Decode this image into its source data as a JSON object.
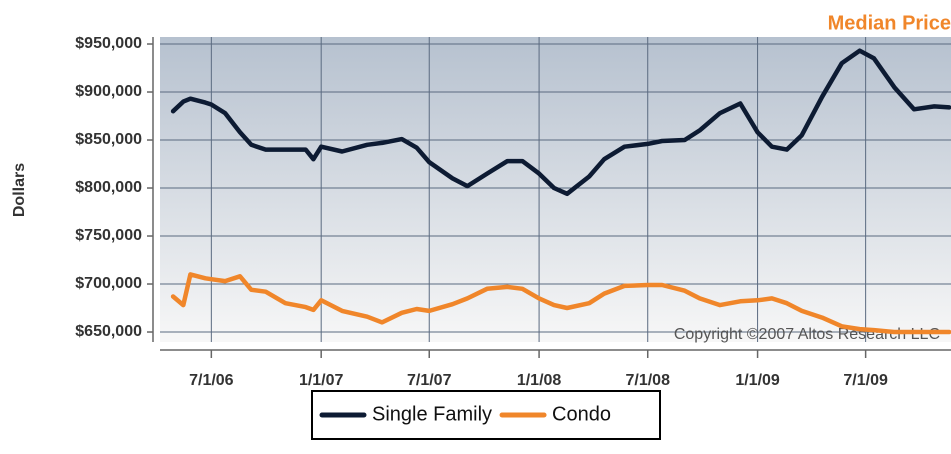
{
  "chart_data": {
    "type": "line",
    "title": "Median Price",
    "ylabel": "Dollars",
    "annotation": "Copyright ©2007 Altos Research LLC",
    "x": [
      "2006-04-28",
      "2006-05-15",
      "2006-05-27",
      "2006-06-21",
      "2006-07-01",
      "2006-07-24",
      "2006-08-18",
      "2006-09-06",
      "2006-09-30",
      "2006-11-02",
      "2006-12-06",
      "2006-12-19",
      "2007-01-01",
      "2007-02-05",
      "2007-03-19",
      "2007-04-13",
      "2007-05-16",
      "2007-06-10",
      "2007-07-01",
      "2007-08-09",
      "2007-09-03",
      "2007-10-06",
      "2007-11-09",
      "2007-12-04",
      "2008-01-01",
      "2008-01-26",
      "2008-02-17",
      "2008-03-25",
      "2008-04-19",
      "2008-05-23",
      "2008-07-01",
      "2008-07-25",
      "2008-09-01",
      "2008-09-26",
      "2008-10-30",
      "2008-12-03",
      "2009-01-01",
      "2009-01-25",
      "2009-02-19",
      "2009-03-16",
      "2009-04-19",
      "2009-05-22",
      "2009-06-21",
      "2009-07-15",
      "2009-08-18",
      "2009-09-20",
      "2009-10-24",
      "2009-11-18"
    ],
    "series": [
      {
        "name": "Single Family",
        "color": "#0d1b33",
        "values": [
          880000,
          890000,
          893000,
          889000,
          887000,
          878000,
          858000,
          845000,
          840000,
          840000,
          840000,
          830000,
          843000,
          838000,
          845000,
          847000,
          851000,
          842000,
          827000,
          810000,
          802000,
          815000,
          828000,
          828000,
          815000,
          800000,
          794000,
          812000,
          830000,
          843000,
          846000,
          849000,
          850000,
          860000,
          878000,
          888000,
          858000,
          843000,
          840000,
          855000,
          895000,
          930000,
          943000,
          935000,
          905000,
          882000,
          885000,
          884000
        ]
      },
      {
        "name": "Condo",
        "color": "#f0862a",
        "values": [
          687000,
          678000,
          710000,
          706000,
          705000,
          703000,
          708000,
          694000,
          692000,
          680000,
          676000,
          673000,
          683000,
          672000,
          666000,
          660000,
          670000,
          674000,
          672000,
          679000,
          685000,
          695000,
          697000,
          695000,
          685000,
          678000,
          675000,
          680000,
          690000,
          698000,
          699000,
          699000,
          693000,
          685000,
          678000,
          682000,
          683000,
          685000,
          680000,
          672000,
          665000,
          656000,
          653000,
          652000,
          650000,
          650000,
          650000,
          650000
        ]
      }
    ],
    "xlim": [
      "2006-04-06",
      "2009-11-21"
    ],
    "xticks": [
      {
        "value": "2006-07-01",
        "label": "7/1/06"
      },
      {
        "value": "2007-01-01",
        "label": "1/1/07"
      },
      {
        "value": "2007-07-01",
        "label": "7/1/07"
      },
      {
        "value": "2008-01-01",
        "label": "1/1/08"
      },
      {
        "value": "2008-07-01",
        "label": "7/1/08"
      },
      {
        "value": "2009-01-01",
        "label": "1/1/09"
      },
      {
        "value": "2009-07-01",
        "label": "7/1/09"
      }
    ],
    "ylim": [
      639600,
      957300
    ],
    "yticks": [
      {
        "value": 650000,
        "label": "$650,000"
      },
      {
        "value": 700000,
        "label": "$700,000"
      },
      {
        "value": 750000,
        "label": "$750,000"
      },
      {
        "value": 800000,
        "label": "$800,000"
      },
      {
        "value": 850000,
        "label": "$850,000"
      },
      {
        "value": 900000,
        "label": "$900,000"
      },
      {
        "value": 950000,
        "label": "$950,000"
      }
    ],
    "grid": true
  }
}
